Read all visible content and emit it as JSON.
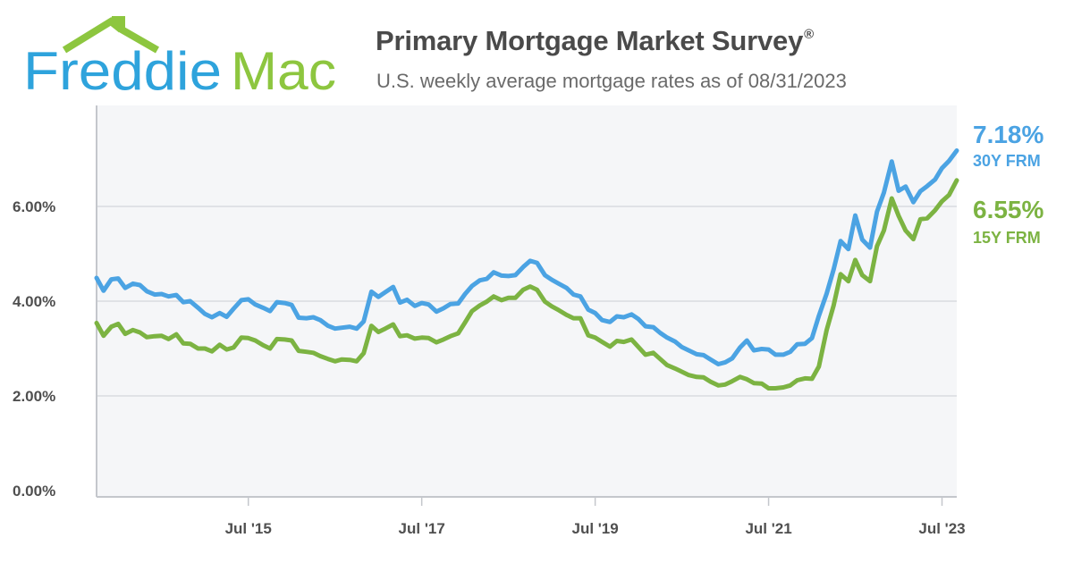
{
  "brand": {
    "logo_part1": "Freddie",
    "logo_part2": "Mac",
    "color_blue": "#2ea3dc",
    "color_green": "#8dc63f"
  },
  "header": {
    "title": "Primary Mortgage Market Survey",
    "title_mark": "®",
    "subtitle": "U.S. weekly average mortgage rates as of 08/31/2023"
  },
  "chart_data": {
    "type": "line",
    "title": "Primary Mortgage Market Survey",
    "subtitle": "U.S. weekly average mortgage rates as of 08/31/2023",
    "xlabel": "",
    "ylabel": "",
    "xlim": [
      2013.75,
      2023.67
    ],
    "ylim": [
      0,
      8
    ],
    "y_ticks": [
      0,
      2,
      4,
      6
    ],
    "y_tick_labels": [
      "0.00%",
      "2.00%",
      "4.00%",
      "6.00%"
    ],
    "x_ticks": [
      2015.5,
      2017.5,
      2019.5,
      2021.5,
      2023.5
    ],
    "x_tick_labels": [
      "Jul '15",
      "Jul '17",
      "Jul '19",
      "Jul '21",
      "Jul '23"
    ],
    "grid": "horizontal",
    "legend": "right end labels",
    "series": [
      {
        "name": "30Y FRM",
        "color": "#4ba3e3",
        "end_label": "7.18%",
        "x": [
          2013.75,
          2013.83,
          2013.92,
          2014.0,
          2014.08,
          2014.17,
          2014.25,
          2014.33,
          2014.42,
          2014.5,
          2014.58,
          2014.67,
          2014.75,
          2014.83,
          2014.92,
          2015.0,
          2015.08,
          2015.17,
          2015.25,
          2015.33,
          2015.42,
          2015.5,
          2015.58,
          2015.67,
          2015.75,
          2015.83,
          2015.92,
          2016.0,
          2016.08,
          2016.17,
          2016.25,
          2016.33,
          2016.42,
          2016.5,
          2016.58,
          2016.67,
          2016.75,
          2016.83,
          2016.92,
          2017.0,
          2017.08,
          2017.17,
          2017.25,
          2017.33,
          2017.42,
          2017.5,
          2017.58,
          2017.67,
          2017.75,
          2017.83,
          2017.92,
          2018.0,
          2018.08,
          2018.17,
          2018.25,
          2018.33,
          2018.42,
          2018.5,
          2018.58,
          2018.67,
          2018.75,
          2018.83,
          2018.92,
          2019.0,
          2019.08,
          2019.17,
          2019.25,
          2019.33,
          2019.42,
          2019.5,
          2019.58,
          2019.67,
          2019.75,
          2019.83,
          2019.92,
          2020.0,
          2020.08,
          2020.17,
          2020.25,
          2020.33,
          2020.42,
          2020.5,
          2020.58,
          2020.67,
          2020.75,
          2020.83,
          2020.92,
          2021.0,
          2021.08,
          2021.17,
          2021.25,
          2021.33,
          2021.42,
          2021.5,
          2021.58,
          2021.67,
          2021.75,
          2021.83,
          2021.92,
          2022.0,
          2022.08,
          2022.17,
          2022.25,
          2022.33,
          2022.42,
          2022.5,
          2022.58,
          2022.67,
          2022.75,
          2022.83,
          2022.92,
          2023.0,
          2023.08,
          2023.17,
          2023.25,
          2023.33,
          2023.42,
          2023.5,
          2023.58,
          2023.67
        ],
        "values": [
          4.49,
          4.22,
          4.46,
          4.48,
          4.28,
          4.37,
          4.34,
          4.21,
          4.14,
          4.15,
          4.1,
          4.13,
          3.98,
          4.0,
          3.86,
          3.73,
          3.66,
          3.75,
          3.67,
          3.84,
          4.02,
          4.04,
          3.93,
          3.86,
          3.79,
          3.98,
          3.96,
          3.92,
          3.65,
          3.64,
          3.66,
          3.6,
          3.48,
          3.42,
          3.44,
          3.46,
          3.42,
          3.57,
          4.2,
          4.09,
          4.19,
          4.3,
          3.97,
          4.03,
          3.9,
          3.96,
          3.93,
          3.78,
          3.85,
          3.94,
          3.95,
          4.15,
          4.32,
          4.44,
          4.47,
          4.61,
          4.54,
          4.53,
          4.55,
          4.72,
          4.85,
          4.81,
          4.55,
          4.45,
          4.37,
          4.28,
          4.14,
          4.1,
          3.82,
          3.75,
          3.6,
          3.56,
          3.68,
          3.66,
          3.72,
          3.62,
          3.47,
          3.45,
          3.33,
          3.23,
          3.15,
          3.03,
          2.96,
          2.88,
          2.86,
          2.77,
          2.67,
          2.71,
          2.79,
          3.02,
          3.17,
          2.96,
          2.99,
          2.98,
          2.87,
          2.87,
          2.93,
          3.09,
          3.1,
          3.22,
          3.69,
          4.16,
          4.67,
          5.27,
          5.1,
          5.81,
          5.3,
          5.13,
          5.89,
          6.29,
          6.95,
          6.33,
          6.42,
          6.09,
          6.32,
          6.43,
          6.57,
          6.81,
          6.96,
          7.18
        ]
      },
      {
        "name": "15Y FRM",
        "color": "#7cb342",
        "end_label": "6.55%",
        "x": [
          2013.75,
          2013.83,
          2013.92,
          2014.0,
          2014.08,
          2014.17,
          2014.25,
          2014.33,
          2014.42,
          2014.5,
          2014.58,
          2014.67,
          2014.75,
          2014.83,
          2014.92,
          2015.0,
          2015.08,
          2015.17,
          2015.25,
          2015.33,
          2015.42,
          2015.5,
          2015.58,
          2015.67,
          2015.75,
          2015.83,
          2015.92,
          2016.0,
          2016.08,
          2016.17,
          2016.25,
          2016.33,
          2016.42,
          2016.5,
          2016.58,
          2016.67,
          2016.75,
          2016.83,
          2016.92,
          2017.0,
          2017.08,
          2017.17,
          2017.25,
          2017.33,
          2017.42,
          2017.5,
          2017.58,
          2017.67,
          2017.75,
          2017.83,
          2017.92,
          2018.0,
          2018.08,
          2018.17,
          2018.25,
          2018.33,
          2018.42,
          2018.5,
          2018.58,
          2018.67,
          2018.75,
          2018.83,
          2018.92,
          2019.0,
          2019.08,
          2019.17,
          2019.25,
          2019.33,
          2019.42,
          2019.5,
          2019.58,
          2019.67,
          2019.75,
          2019.83,
          2019.92,
          2020.0,
          2020.08,
          2020.17,
          2020.25,
          2020.33,
          2020.42,
          2020.5,
          2020.58,
          2020.67,
          2020.75,
          2020.83,
          2020.92,
          2021.0,
          2021.08,
          2021.17,
          2021.25,
          2021.33,
          2021.42,
          2021.5,
          2021.58,
          2021.67,
          2021.75,
          2021.83,
          2021.92,
          2022.0,
          2022.08,
          2022.17,
          2022.25,
          2022.33,
          2022.42,
          2022.5,
          2022.58,
          2022.67,
          2022.75,
          2022.83,
          2022.92,
          2023.0,
          2023.08,
          2023.17,
          2023.25,
          2023.33,
          2023.42,
          2023.5,
          2023.58,
          2023.67
        ],
        "values": [
          3.54,
          3.27,
          3.46,
          3.52,
          3.31,
          3.39,
          3.34,
          3.24,
          3.26,
          3.27,
          3.2,
          3.3,
          3.11,
          3.1,
          3.0,
          3.0,
          2.94,
          3.08,
          2.98,
          3.02,
          3.23,
          3.22,
          3.17,
          3.07,
          3.0,
          3.2,
          3.19,
          3.17,
          2.95,
          2.93,
          2.91,
          2.84,
          2.78,
          2.73,
          2.77,
          2.76,
          2.73,
          2.9,
          3.48,
          3.35,
          3.42,
          3.51,
          3.26,
          3.28,
          3.21,
          3.23,
          3.22,
          3.13,
          3.19,
          3.26,
          3.32,
          3.55,
          3.79,
          3.91,
          3.99,
          4.1,
          4.02,
          4.07,
          4.07,
          4.24,
          4.31,
          4.24,
          3.99,
          3.89,
          3.81,
          3.71,
          3.64,
          3.64,
          3.28,
          3.23,
          3.14,
          3.04,
          3.16,
          3.14,
          3.19,
          3.03,
          2.87,
          2.91,
          2.78,
          2.65,
          2.58,
          2.51,
          2.44,
          2.4,
          2.39,
          2.3,
          2.22,
          2.24,
          2.31,
          2.4,
          2.35,
          2.27,
          2.26,
          2.16,
          2.16,
          2.18,
          2.22,
          2.33,
          2.37,
          2.36,
          2.62,
          3.39,
          3.91,
          4.57,
          4.42,
          4.87,
          4.55,
          4.42,
          5.16,
          5.49,
          6.17,
          5.8,
          5.49,
          5.31,
          5.73,
          5.75,
          5.92,
          6.11,
          6.24,
          6.55
        ]
      }
    ]
  }
}
